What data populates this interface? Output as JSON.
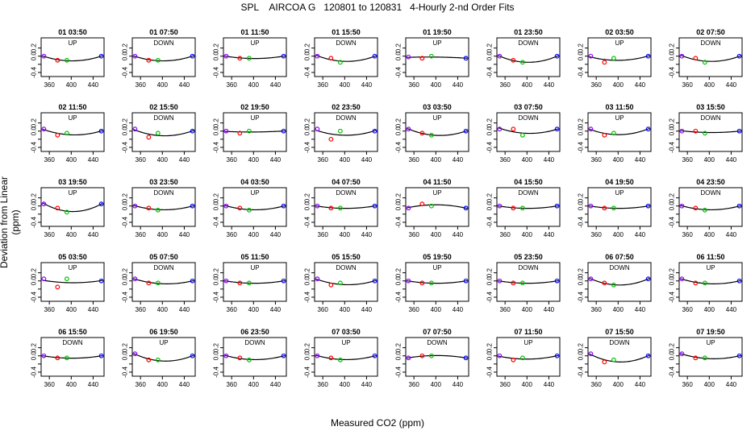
{
  "chart_data": {
    "type": "scatter",
    "title": "SPL    AIRCOA G   120801 to 120831   4-Hourly 2-nd Order Fits",
    "xlabel": "Measured CO2 (ppm)",
    "ylabel": "Deviation from Linear (ppm)",
    "xlim": [
      345,
      460
    ],
    "ylim": [
      -0.5,
      0.45
    ],
    "x_ticks": [
      360,
      400,
      440
    ],
    "y_ticks": [
      -0.4,
      -0.2,
      0.0,
      0.2
    ],
    "y_tick_labels": [
      "-0.4",
      "",
      "0.0",
      "0.2"
    ],
    "grid": false,
    "point_colors": {
      "low": "#8b00ff",
      "mid_low": "#ff0000",
      "mid_high": "#00c000",
      "high": "#0000ff"
    },
    "curve_color": "#000000",
    "panels": [
      {
        "title": "01 03:50",
        "mode": "UP",
        "points": [
          [
            350,
            0.0
          ],
          [
            375,
            -0.1
          ],
          [
            392,
            -0.1
          ],
          [
            455,
            0.0
          ]
        ]
      },
      {
        "title": "01 07:50",
        "mode": "DOWN",
        "points": [
          [
            350,
            0.0
          ],
          [
            375,
            -0.1
          ],
          [
            392,
            -0.1
          ],
          [
            455,
            0.0
          ]
        ]
      },
      {
        "title": "01 11:50",
        "mode": "UP",
        "points": [
          [
            350,
            0.0
          ],
          [
            375,
            -0.05
          ],
          [
            392,
            -0.05
          ],
          [
            455,
            0.0
          ]
        ]
      },
      {
        "title": "01 15:50",
        "mode": "DOWN",
        "points": [
          [
            350,
            0.0
          ],
          [
            375,
            -0.05
          ],
          [
            392,
            -0.15
          ],
          [
            455,
            0.0
          ]
        ]
      },
      {
        "title": "01 19:50",
        "mode": "UP",
        "points": [
          [
            350,
            -0.02
          ],
          [
            375,
            -0.05
          ],
          [
            392,
            0.0
          ],
          [
            455,
            -0.05
          ]
        ]
      },
      {
        "title": "01 23:50",
        "mode": "DOWN",
        "points": [
          [
            350,
            0.0
          ],
          [
            375,
            -0.1
          ],
          [
            392,
            -0.15
          ],
          [
            455,
            0.0
          ]
        ]
      },
      {
        "title": "02 03:50",
        "mode": "UP",
        "points": [
          [
            350,
            0.0
          ],
          [
            375,
            -0.15
          ],
          [
            392,
            -0.05
          ],
          [
            455,
            0.0
          ]
        ]
      },
      {
        "title": "02 07:50",
        "mode": "DOWN",
        "points": [
          [
            350,
            0.0
          ],
          [
            375,
            -0.05
          ],
          [
            392,
            -0.15
          ],
          [
            455,
            0.0
          ]
        ]
      },
      {
        "title": "02 11:50",
        "mode": "UP",
        "points": [
          [
            350,
            0.05
          ],
          [
            375,
            -0.1
          ],
          [
            392,
            -0.05
          ],
          [
            455,
            0.0
          ]
        ]
      },
      {
        "title": "02 15:50",
        "mode": "DOWN",
        "points": [
          [
            350,
            0.05
          ],
          [
            375,
            -0.15
          ],
          [
            392,
            -0.05
          ],
          [
            455,
            0.0
          ]
        ]
      },
      {
        "title": "02 19:50",
        "mode": "UP",
        "points": [
          [
            350,
            0.0
          ],
          [
            375,
            -0.05
          ],
          [
            392,
            0.0
          ],
          [
            455,
            0.0
          ]
        ]
      },
      {
        "title": "02 23:50",
        "mode": "DOWN",
        "points": [
          [
            350,
            0.05
          ],
          [
            375,
            -0.2
          ],
          [
            392,
            0.0
          ],
          [
            455,
            0.0
          ]
        ]
      },
      {
        "title": "03 03:50",
        "mode": "UP",
        "points": [
          [
            350,
            0.05
          ],
          [
            375,
            -0.05
          ],
          [
            392,
            -0.1
          ],
          [
            455,
            0.0
          ]
        ]
      },
      {
        "title": "03 07:50",
        "mode": "DOWN",
        "points": [
          [
            350,
            0.05
          ],
          [
            375,
            0.05
          ],
          [
            392,
            -0.1
          ],
          [
            455,
            0.05
          ]
        ]
      },
      {
        "title": "03 11:50",
        "mode": "UP",
        "points": [
          [
            350,
            0.05
          ],
          [
            375,
            -0.1
          ],
          [
            392,
            -0.05
          ],
          [
            455,
            0.05
          ]
        ]
      },
      {
        "title": "03 15:50",
        "mode": "DOWN",
        "points": [
          [
            350,
            0.0
          ],
          [
            375,
            0.0
          ],
          [
            392,
            -0.05
          ],
          [
            455,
            0.0
          ]
        ]
      },
      {
        "title": "03 19:50",
        "mode": "UP",
        "points": [
          [
            350,
            0.05
          ],
          [
            375,
            -0.05
          ],
          [
            392,
            -0.15
          ],
          [
            455,
            0.05
          ]
        ]
      },
      {
        "title": "03 23:50",
        "mode": "DOWN",
        "points": [
          [
            350,
            0.0
          ],
          [
            375,
            -0.05
          ],
          [
            392,
            -0.1
          ],
          [
            455,
            0.0
          ]
        ]
      },
      {
        "title": "04 03:50",
        "mode": "UP",
        "points": [
          [
            350,
            0.0
          ],
          [
            375,
            -0.05
          ],
          [
            392,
            -0.1
          ],
          [
            455,
            0.0
          ]
        ]
      },
      {
        "title": "04 07:50",
        "mode": "DOWN",
        "points": [
          [
            350,
            0.0
          ],
          [
            375,
            -0.05
          ],
          [
            392,
            -0.05
          ],
          [
            455,
            0.0
          ]
        ]
      },
      {
        "title": "04 11:50",
        "mode": "UP",
        "points": [
          [
            350,
            -0.05
          ],
          [
            375,
            0.05
          ],
          [
            392,
            0.0
          ],
          [
            455,
            -0.05
          ]
        ]
      },
      {
        "title": "04 15:50",
        "mode": "DOWN",
        "points": [
          [
            350,
            0.0
          ],
          [
            375,
            -0.05
          ],
          [
            392,
            -0.05
          ],
          [
            455,
            0.0
          ]
        ]
      },
      {
        "title": "04 19:50",
        "mode": "UP",
        "points": [
          [
            350,
            0.0
          ],
          [
            375,
            -0.05
          ],
          [
            392,
            -0.05
          ],
          [
            455,
            0.0
          ]
        ]
      },
      {
        "title": "04 23:50",
        "mode": "DOWN",
        "points": [
          [
            350,
            0.0
          ],
          [
            375,
            -0.05
          ],
          [
            392,
            -0.1
          ],
          [
            455,
            0.0
          ]
        ]
      },
      {
        "title": "05 03:50",
        "mode": "UP",
        "points": [
          [
            350,
            0.05
          ],
          [
            375,
            -0.15
          ],
          [
            392,
            0.05
          ],
          [
            455,
            0.0
          ]
        ]
      },
      {
        "title": "05 07:50",
        "mode": "DOWN",
        "points": [
          [
            350,
            0.05
          ],
          [
            375,
            -0.05
          ],
          [
            392,
            -0.05
          ],
          [
            455,
            0.0
          ]
        ]
      },
      {
        "title": "05 11:50",
        "mode": "UP",
        "points": [
          [
            350,
            0.0
          ],
          [
            375,
            -0.05
          ],
          [
            392,
            -0.05
          ],
          [
            455,
            0.0
          ]
        ]
      },
      {
        "title": "05 15:50",
        "mode": "DOWN",
        "points": [
          [
            350,
            0.05
          ],
          [
            375,
            -0.1
          ],
          [
            392,
            -0.05
          ],
          [
            455,
            0.0
          ]
        ]
      },
      {
        "title": "05 19:50",
        "mode": "UP",
        "points": [
          [
            350,
            0.0
          ],
          [
            375,
            -0.05
          ],
          [
            392,
            -0.05
          ],
          [
            455,
            0.0
          ]
        ]
      },
      {
        "title": "05 23:50",
        "mode": "DOWN",
        "points": [
          [
            350,
            0.0
          ],
          [
            375,
            -0.05
          ],
          [
            392,
            -0.05
          ],
          [
            455,
            0.0
          ]
        ]
      },
      {
        "title": "06 07:50",
        "mode": "DOWN",
        "points": [
          [
            350,
            0.05
          ],
          [
            375,
            -0.05
          ],
          [
            392,
            -0.1
          ],
          [
            455,
            0.05
          ]
        ]
      },
      {
        "title": "06 11:50",
        "mode": "UP",
        "points": [
          [
            350,
            0.05
          ],
          [
            375,
            -0.05
          ],
          [
            392,
            -0.05
          ],
          [
            455,
            0.0
          ]
        ]
      },
      {
        "title": "06 15:50",
        "mode": "DOWN",
        "points": [
          [
            350,
            0.0
          ],
          [
            375,
            -0.05
          ],
          [
            392,
            -0.05
          ],
          [
            455,
            0.0
          ]
        ]
      },
      {
        "title": "06 19:50",
        "mode": "UP",
        "points": [
          [
            350,
            0.05
          ],
          [
            375,
            -0.1
          ],
          [
            392,
            -0.1
          ],
          [
            455,
            0.0
          ]
        ]
      },
      {
        "title": "06 23:50",
        "mode": "DOWN",
        "points": [
          [
            350,
            0.0
          ],
          [
            375,
            -0.05
          ],
          [
            392,
            -0.1
          ],
          [
            455,
            0.0
          ]
        ]
      },
      {
        "title": "07 03:50",
        "mode": "UP",
        "points": [
          [
            350,
            0.0
          ],
          [
            375,
            -0.05
          ],
          [
            392,
            -0.1
          ],
          [
            455,
            0.0
          ]
        ]
      },
      {
        "title": "07 07:50",
        "mode": "DOWN",
        "points": [
          [
            350,
            -0.05
          ],
          [
            375,
            0.0
          ],
          [
            392,
            0.0
          ],
          [
            455,
            -0.05
          ]
        ]
      },
      {
        "title": "07 11:50",
        "mode": "UP",
        "points": [
          [
            350,
            0.0
          ],
          [
            375,
            -0.1
          ],
          [
            392,
            -0.05
          ],
          [
            455,
            0.0
          ]
        ]
      },
      {
        "title": "07 15:50",
        "mode": "DOWN",
        "points": [
          [
            350,
            0.05
          ],
          [
            375,
            -0.15
          ],
          [
            392,
            -0.1
          ],
          [
            455,
            0.0
          ]
        ]
      },
      {
        "title": "07 19:50",
        "mode": "UP",
        "points": [
          [
            350,
            0.05
          ],
          [
            375,
            -0.05
          ],
          [
            392,
            -0.05
          ],
          [
            455,
            0.0
          ]
        ]
      }
    ]
  }
}
